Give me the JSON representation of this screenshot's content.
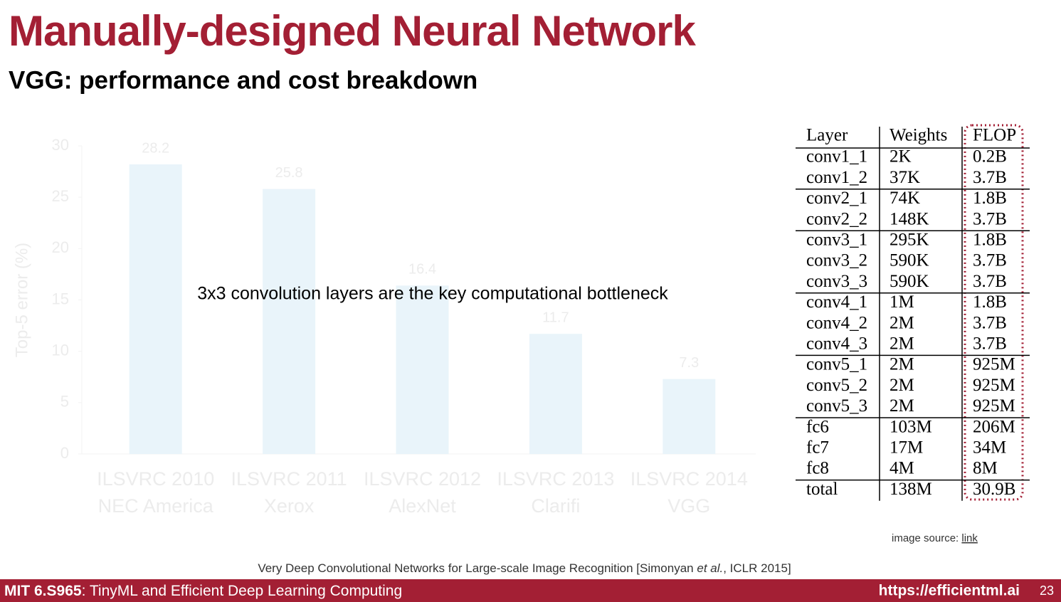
{
  "header": {
    "title": "Manually-designed Neural Network",
    "subtitle": "VGG: performance and cost breakdown"
  },
  "chart_data": {
    "type": "bar",
    "ylabel": "Top-5 error (%)",
    "categories": [
      [
        "ILSVRC 2010",
        "NEC America"
      ],
      [
        "ILSVRC 2011",
        "Xerox"
      ],
      [
        "ILSVRC 2012",
        "AlexNet"
      ],
      [
        "ILSVRC 2013",
        "Clarifi"
      ],
      [
        "ILSVRC 2014",
        "VGG"
      ]
    ],
    "values": [
      28.2,
      25.8,
      16.4,
      11.7,
      7.3
    ],
    "color": "#e9f4fa",
    "text_color": "#ececec",
    "ylim": [
      0,
      30
    ],
    "yticks": [
      0,
      5,
      10,
      15,
      20,
      25,
      30
    ],
    "annotation": "3x3 convolution layers are the key computational bottleneck"
  },
  "table": {
    "header": [
      "Layer",
      "Weights",
      "FLOP"
    ],
    "groups": [
      [
        [
          "conv1_1",
          "2K",
          "0.2B"
        ],
        [
          "conv1_2",
          "37K",
          "3.7B"
        ]
      ],
      [
        [
          "conv2_1",
          "74K",
          "1.8B"
        ],
        [
          "conv2_2",
          "148K",
          "3.7B"
        ]
      ],
      [
        [
          "conv3_1",
          "295K",
          "1.8B"
        ],
        [
          "conv3_2",
          "590K",
          "3.7B"
        ],
        [
          "conv3_3",
          "590K",
          "3.7B"
        ]
      ],
      [
        [
          "conv4_1",
          "1M",
          "1.8B"
        ],
        [
          "conv4_2",
          "2M",
          "3.7B"
        ],
        [
          "conv4_3",
          "2M",
          "3.7B"
        ]
      ],
      [
        [
          "conv5_1",
          "2M",
          "925M"
        ],
        [
          "conv5_2",
          "2M",
          "925M"
        ],
        [
          "conv5_3",
          "2M",
          "925M"
        ]
      ],
      [
        [
          "fc6",
          "103M",
          "206M"
        ],
        [
          "fc7",
          "17M",
          "34M"
        ],
        [
          "fc8",
          "4M",
          "8M"
        ]
      ],
      [
        [
          "total",
          "138M",
          "30.9B"
        ]
      ]
    ]
  },
  "source": {
    "prefix": "image source:",
    "link": "link"
  },
  "citation": {
    "before": "Very Deep Convolutional Networks for Large-scale Image Recognition [Simonyan ",
    "italic": "et al.",
    "after": ", ICLR 2015]"
  },
  "footer": {
    "course": "MIT 6.S965",
    "course_title": ": TinyML and Efficient Deep Learning Computing",
    "url": "https://efficientml.ai",
    "page": "23"
  }
}
